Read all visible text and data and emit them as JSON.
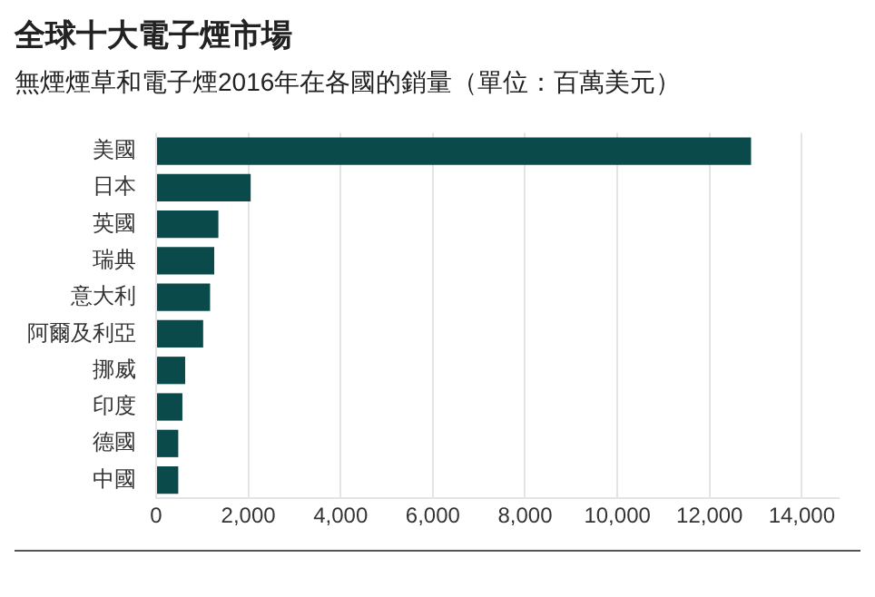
{
  "chart_data": {
    "type": "bar",
    "orientation": "horizontal",
    "title": "全球十大電子煙市場",
    "subtitle": "無煙煙草和電子煙2016年在各國的銷量（單位：百萬美元）",
    "categories": [
      "美國",
      "日本",
      "英國",
      "瑞典",
      "意大利",
      "阿爾及利亞",
      "挪威",
      "印度",
      "德國",
      "中國"
    ],
    "values": [
      12900,
      2050,
      1350,
      1260,
      1170,
      1020,
      630,
      570,
      480,
      480
    ],
    "color": "#0b4a4b",
    "xlim": [
      0,
      14800
    ],
    "xticks": [
      0,
      {
        "value": 2000,
        "label": "2,000"
      },
      {
        "value": 4000,
        "label": "4,000"
      },
      {
        "value": 6000,
        "label": "6,000"
      },
      {
        "value": 8000,
        "label": "8,000"
      },
      {
        "value": 10000,
        "label": "10,000"
      },
      {
        "value": 12000,
        "label": "12,000"
      },
      {
        "value": 14000,
        "label": "14,000"
      }
    ],
    "grid": "x",
    "legend": false
  }
}
